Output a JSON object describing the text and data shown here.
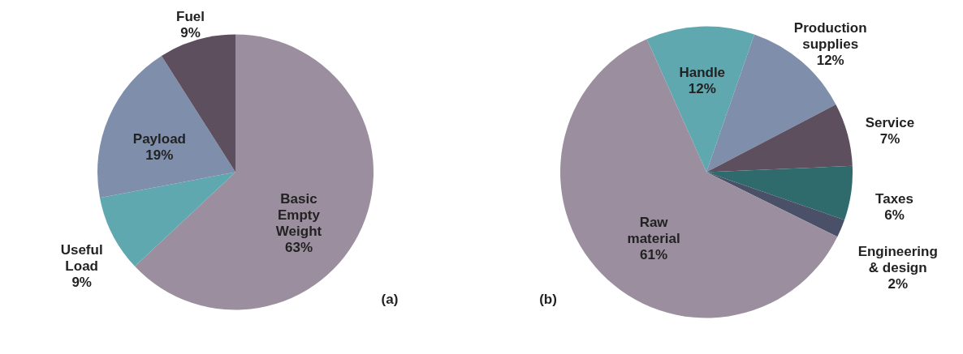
{
  "chart_data": [
    {
      "type": "pie",
      "categories": [
        "Basic Empty Weight",
        "Useful Load",
        "Payload",
        "Fuel"
      ],
      "values": [
        63,
        9,
        19,
        9
      ],
      "value_labels": [
        "63%",
        "9%",
        "19%",
        "9%"
      ],
      "colors": [
        "#9b8e9e",
        "#5fa8b0",
        "#7f8fab",
        "#5e4f5e"
      ],
      "annotations": [
        "(a)"
      ],
      "legend": false
    },
    {
      "type": "pie",
      "categories": [
        "Handle",
        "Production supplies",
        "Service",
        "Taxes",
        "Engineering & design",
        "Raw material"
      ],
      "values": [
        12,
        12,
        7,
        6,
        2,
        61
      ],
      "value_labels": [
        "12%",
        "12%",
        "7%",
        "6%",
        "2%",
        "61%"
      ],
      "colors": [
        "#5fa8b0",
        "#7f8fab",
        "#5e4f5e",
        "#2f6a6c",
        "#4a5068",
        "#9b8e9e"
      ],
      "annotations": [
        "(b)"
      ],
      "legend": false
    }
  ]
}
